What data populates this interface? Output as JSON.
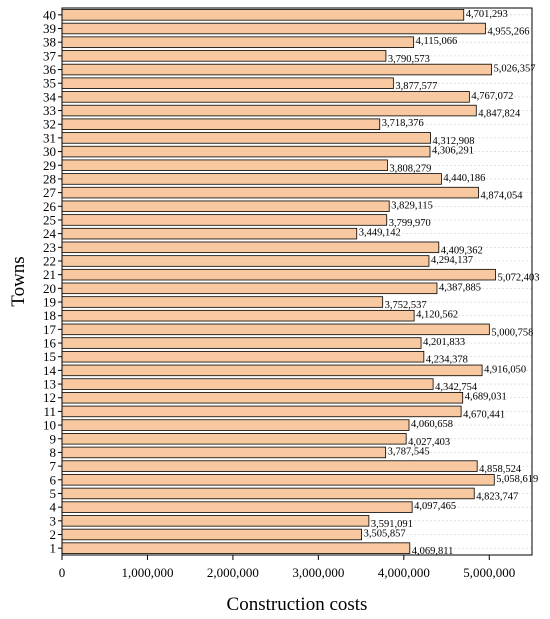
{
  "chart_data": {
    "type": "bar",
    "orientation": "horizontal",
    "categories": [
      "1",
      "2",
      "3",
      "4",
      "5",
      "6",
      "7",
      "8",
      "9",
      "10",
      "11",
      "12",
      "13",
      "14",
      "15",
      "16",
      "17",
      "18",
      "19",
      "20",
      "21",
      "22",
      "23",
      "24",
      "25",
      "26",
      "27",
      "28",
      "29",
      "30",
      "31",
      "32",
      "33",
      "34",
      "35",
      "36",
      "37",
      "38",
      "39",
      "40"
    ],
    "values": [
      4069811,
      3505857,
      3591091,
      4097465,
      4823747,
      5058619,
      4858524,
      3787545,
      4027403,
      4060658,
      4670441,
      4689031,
      4342754,
      4916050,
      4234378,
      4201833,
      5000758,
      4120562,
      3752537,
      4387885,
      5072403,
      4294137,
      4409362,
      3449142,
      3799970,
      3829115,
      4874054,
      4440186,
      3808279,
      4306291,
      4312908,
      3718376,
      4847824,
      4767072,
      3877577,
      5026357,
      3790573,
      4115066,
      4955266,
      4701293
    ],
    "value_labels": [
      "4,069,811",
      "3,505,857",
      "3,591,091",
      "4,097,465",
      "4,823,747",
      "5,058,619",
      "4,858,524",
      "3,787,545",
      "4,027,403",
      "4,060,658",
      "4,670,441",
      "4,689,031",
      "4,342,754",
      "4,916,050",
      "4,234,378",
      "4,201,833",
      "5,000,758",
      "4,120,562",
      "3,752,537",
      "4,387,885",
      "5,072,403",
      "4,294,137",
      "4,409,362",
      "3,449,142",
      "3,799,970",
      "3,829,115",
      "4,874,054",
      "4,440,186",
      "3,808,279",
      "4,306,291",
      "4,312,908",
      "3,718,376",
      "4,847,824",
      "4,767,072",
      "3,877,577",
      "5,026,357",
      "3,790,573",
      "4,115,066",
      "4,955,266",
      "4,701,293"
    ],
    "xlabel": "Construction costs",
    "ylabel": "Towns",
    "xlim": [
      0,
      5500000
    ],
    "xticks": [
      0,
      1000000,
      2000000,
      3000000,
      4000000,
      5000000
    ],
    "xtick_labels": [
      "0",
      "1,000,000",
      "2,000,000",
      "3,000,000",
      "4,000,000",
      "5,000,000"
    ],
    "grid": true,
    "colors": {
      "bar_fill": "#f8c9a0",
      "bar_edge": "#000000"
    }
  }
}
